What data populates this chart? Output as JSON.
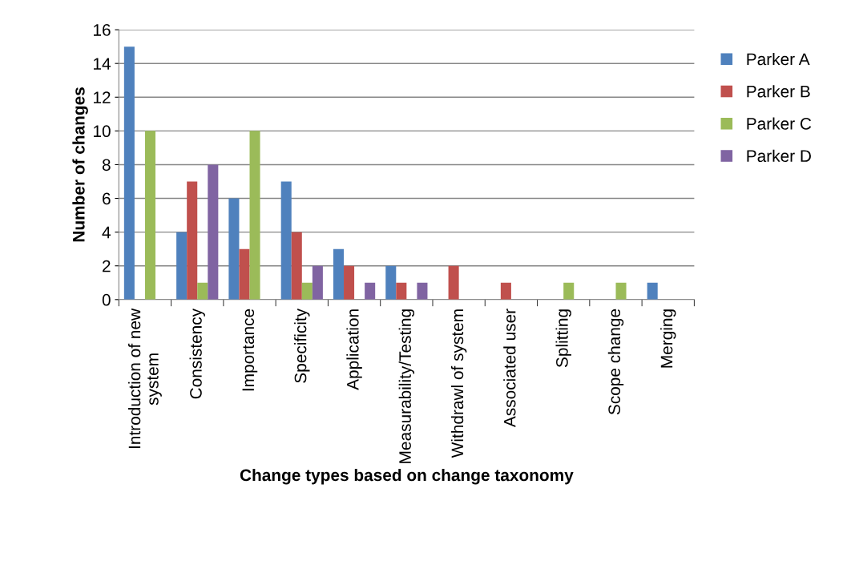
{
  "chart_data": {
    "type": "bar",
    "xlabel": "Change types based on change taxonomy",
    "ylabel": "Number of changes",
    "categories": [
      "Introduction of new\nsystem",
      "Consistency",
      "Importance",
      "Specificity",
      "Application",
      "Measurability/Testing",
      "Withdrawl of system",
      "Associated user",
      "Splitting",
      "Scope change",
      "Merging"
    ],
    "series": [
      {
        "name": "Parker A",
        "color": "#4f81bd",
        "values": [
          15,
          4,
          6,
          7,
          3,
          2,
          0,
          0,
          0,
          0,
          1
        ]
      },
      {
        "name": "Parker B",
        "color": "#c0504d",
        "values": [
          0,
          7,
          3,
          4,
          2,
          1,
          2,
          1,
          0,
          0,
          0
        ]
      },
      {
        "name": "Parker C",
        "color": "#9bbb59",
        "values": [
          10,
          1,
          10,
          1,
          0,
          0,
          0,
          0,
          1,
          1,
          0
        ]
      },
      {
        "name": "Parker D",
        "color": "#8064a2",
        "values": [
          0,
          8,
          0,
          2,
          1,
          1,
          0,
          0,
          0,
          0,
          0
        ]
      }
    ],
    "ylim": [
      0,
      16
    ],
    "yticks": [
      0,
      2,
      4,
      6,
      8,
      10,
      12,
      14,
      16
    ],
    "grid": "y",
    "legend": "right"
  }
}
